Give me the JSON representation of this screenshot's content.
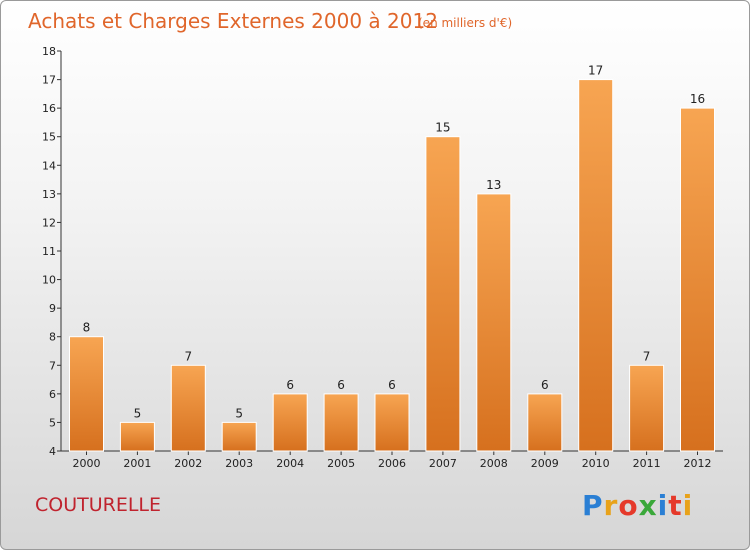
{
  "chart_data": {
    "type": "bar",
    "title": "Achats et Charges Externes 2000 à 2012",
    "subtitle": "(en milliers d'€)",
    "categories": [
      "2000",
      "2001",
      "2002",
      "2003",
      "2004",
      "2005",
      "2006",
      "2007",
      "2008",
      "2009",
      "2010",
      "2011",
      "2012"
    ],
    "values": [
      8,
      5,
      7,
      5,
      6,
      6,
      6,
      15,
      13,
      6,
      17,
      7,
      16
    ],
    "value_labels": [
      "8",
      "5",
      "7",
      "5",
      "6",
      "6",
      "6",
      "15",
      "13",
      "6",
      "17",
      "7",
      "16"
    ],
    "yticks": [
      "4",
      "5",
      "6",
      "7",
      "8",
      "9",
      "10",
      "11",
      "12",
      "13",
      "14",
      "15",
      "16",
      "17",
      "18"
    ],
    "ylim": [
      4,
      18
    ],
    "grid": false,
    "bar_color_light": "#f7a552",
    "bar_color_dark": "#d6701e",
    "title_color": "#e0662b"
  },
  "commune": "COUTURELLE",
  "logo": {
    "letters": [
      "P",
      "r",
      "o",
      "x",
      "i",
      "t",
      "i"
    ],
    "colors": [
      "#2a7fd4",
      "#e8a21a",
      "#e5392a",
      "#3aa83a",
      "#2a7fd4",
      "#e5392a",
      "#e8a21a"
    ]
  }
}
